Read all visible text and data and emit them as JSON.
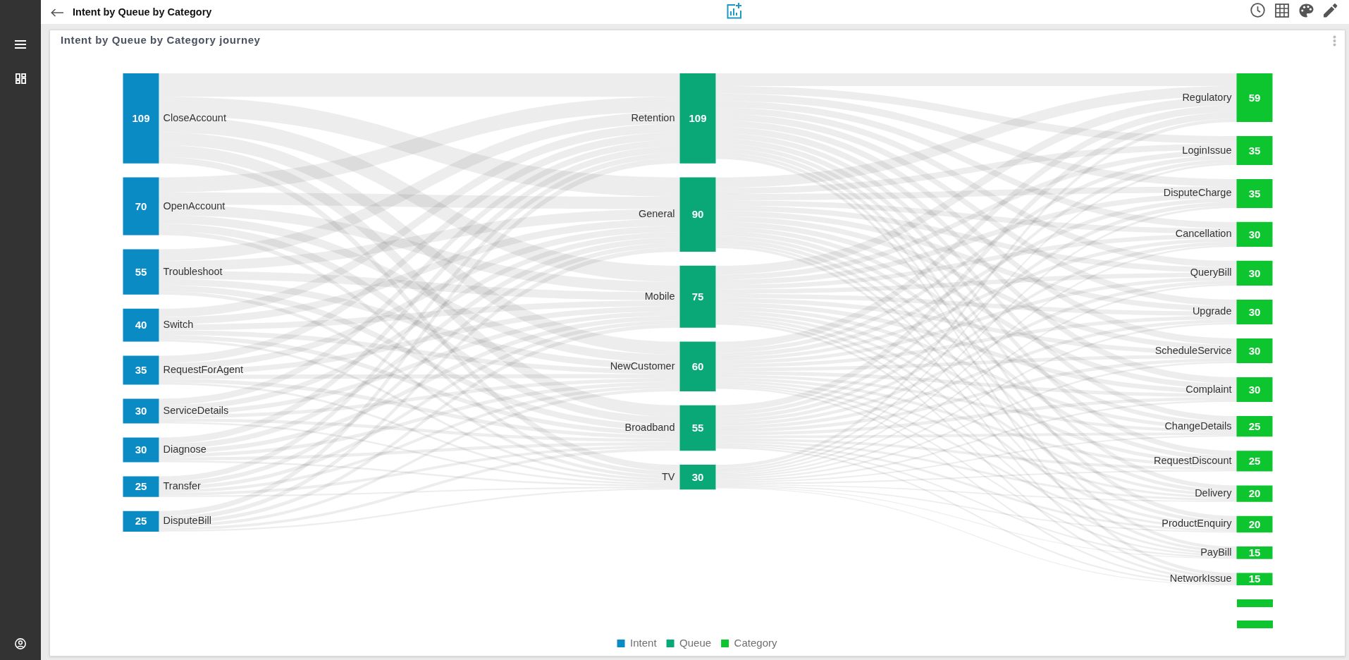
{
  "chart_data": {
    "type": "other",
    "title": "Intent by Queue by Category",
    "subtitle": "Intent by Queue by Category journey",
    "categories": [
      "CloseAccount",
      "OpenAccount",
      "Troubleshoot",
      "Switch",
      "RequestForAgent",
      "ServiceDetails",
      "Diagnose",
      "Transfer",
      "DisputeBill",
      "Retention",
      "General",
      "Mobile",
      "NewCustomer",
      "Broadband",
      "TV",
      "Regulatory",
      "LoginIssue",
      "DisputeCharge",
      "Cancellation",
      "QueryBill",
      "Upgrade",
      "ScheduleService",
      "Complaint",
      "ChangeDetails",
      "RequestDiscount",
      "Delivery",
      "ProductEnquiry",
      "PayBill",
      "NetworkIssue",
      null,
      null
    ],
    "series": [
      {
        "name": "Intent",
        "color": "#0b8bc4",
        "values": [
          109,
          70,
          55,
          40,
          35,
          30,
          30,
          25,
          25,
          null,
          null,
          null,
          null,
          null,
          null,
          null,
          null,
          null,
          null,
          null,
          null,
          null,
          null,
          null,
          null,
          null,
          null,
          null,
          null,
          null,
          null
        ]
      },
      {
        "name": "Queue",
        "color": "#0aa877",
        "values": [
          null,
          null,
          null,
          null,
          null,
          null,
          null,
          null,
          null,
          109,
          90,
          75,
          60,
          55,
          30,
          null,
          null,
          null,
          null,
          null,
          null,
          null,
          null,
          null,
          null,
          null,
          null,
          null,
          null,
          null,
          null
        ]
      },
      {
        "name": "Category",
        "color": "#0cc52f",
        "values": [
          null,
          null,
          null,
          null,
          null,
          null,
          null,
          null,
          null,
          null,
          null,
          null,
          null,
          null,
          null,
          59,
          35,
          35,
          30,
          30,
          30,
          30,
          30,
          25,
          25,
          20,
          20,
          15,
          15,
          null,
          null
        ]
      }
    ],
    "data_labels": true,
    "legend": "bottom"
  }
}
